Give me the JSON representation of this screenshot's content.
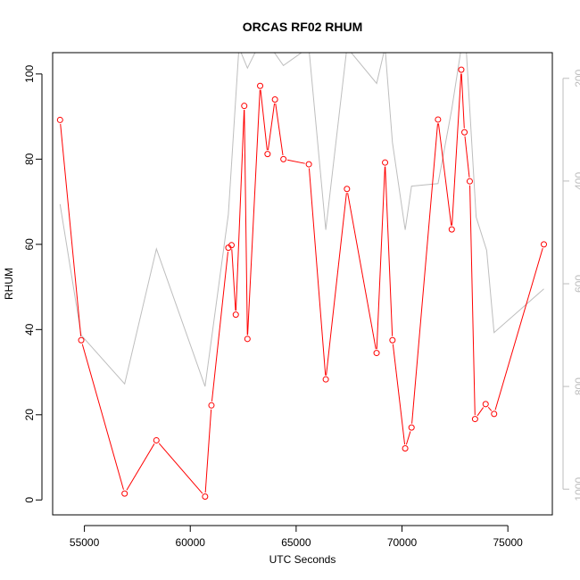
{
  "chart_data": {
    "type": "line",
    "title": "ORCAS RF02 RHUM",
    "xlabel": "UTC Seconds",
    "ylabel": "RHUM",
    "xlim": [
      53500,
      77100
    ],
    "ylim": [
      -3.5,
      105
    ],
    "xticks": [
      55000,
      60000,
      65000,
      70000,
      75000
    ],
    "yticks": [
      0,
      20,
      40,
      60,
      80,
      100
    ],
    "secondary_axis": {
      "reversed": true,
      "range": [
        1050,
        150
      ],
      "ticks": [
        200,
        400,
        600,
        800,
        1000
      ],
      "color": "#bdbdbd"
    },
    "series": [
      {
        "color": "#ff0000",
        "markers": "open-circle",
        "axis": "left",
        "x": [
          53850,
          54850,
          56900,
          58400,
          60700,
          61000,
          61800,
          61950,
          62150,
          62550,
          62700,
          63300,
          63650,
          64000,
          64400,
          65600,
          66400,
          67400,
          68800,
          69200,
          69550,
          70150,
          70450,
          71700,
          72350,
          72800,
          72950,
          73200,
          73450,
          73950,
          74350,
          76700
        ],
        "y": [
          89.2,
          37.5,
          1.5,
          14.0,
          0.8,
          22.2,
          59.2,
          59.8,
          43.5,
          92.5,
          37.8,
          97.2,
          81.2,
          94.0,
          80.0,
          78.8,
          28.3,
          73.0,
          34.5,
          79.2,
          37.5,
          12.1,
          17.0,
          89.3,
          63.5,
          101.0,
          86.3,
          74.8,
          19.0,
          22.5,
          20.2,
          60.0
        ]
      },
      {
        "color": "#bebebe",
        "markers": "none",
        "axis": "right",
        "x": [
          53850,
          54850,
          56900,
          58400,
          60700,
          61800,
          62300,
          62700,
          63300,
          63800,
          64400,
          65600,
          66400,
          67400,
          68800,
          69200,
          69550,
          70150,
          70450,
          71700,
          72350,
          72800,
          73000,
          73500,
          74000,
          74350,
          76700
        ],
        "y": [
          445,
          700,
          795,
          532,
          800,
          465,
          140,
          180,
          130,
          140,
          175,
          140,
          495,
          140,
          210,
          140,
          325,
          495,
          410,
          405,
          260,
          140,
          120,
          470,
          535,
          695,
          610
        ]
      }
    ]
  }
}
